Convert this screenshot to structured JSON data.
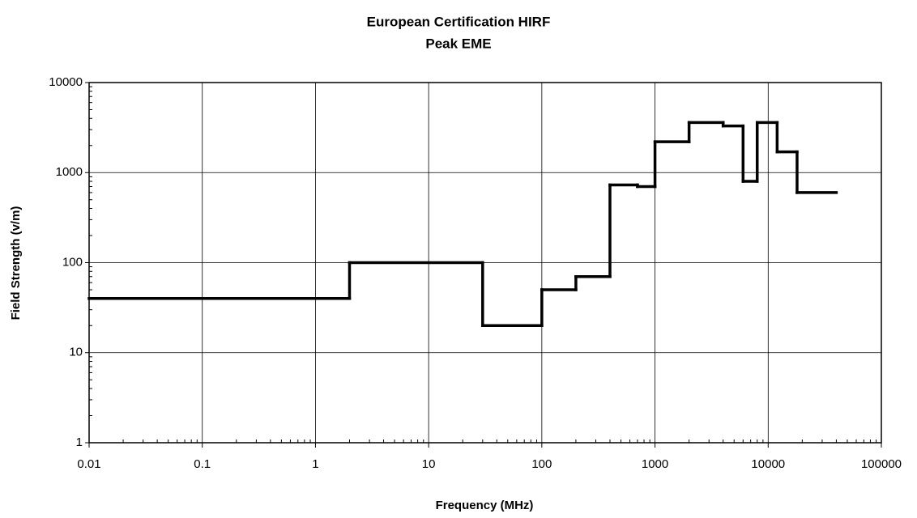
{
  "chart_data": {
    "type": "step",
    "title": "European Certification HIRF",
    "subtitle": "Peak EME",
    "x_label": "Frequency (MHz)",
    "y_label": "Field Strength (v/m)",
    "series": [
      {
        "name": "Peak EME",
        "color": "#000000",
        "bins": [
          0.01,
          2,
          30,
          100,
          200,
          400,
          700,
          1000,
          2000,
          4000,
          6000,
          8000,
          12000,
          18000,
          40000
        ],
        "values": [
          40,
          100,
          20,
          50,
          70,
          730,
          700,
          2200,
          3600,
          3300,
          800,
          3600,
          1700,
          600
        ]
      }
    ],
    "xlim": [
      0.01,
      100000
    ],
    "ylim": [
      1,
      10000
    ],
    "xticks": [
      0.01,
      0.1,
      1,
      10,
      100,
      1000,
      10000,
      100000
    ],
    "yticks": [
      1,
      10,
      100,
      1000,
      10000
    ],
    "xscale": "log",
    "yscale": "log",
    "grid": true
  }
}
